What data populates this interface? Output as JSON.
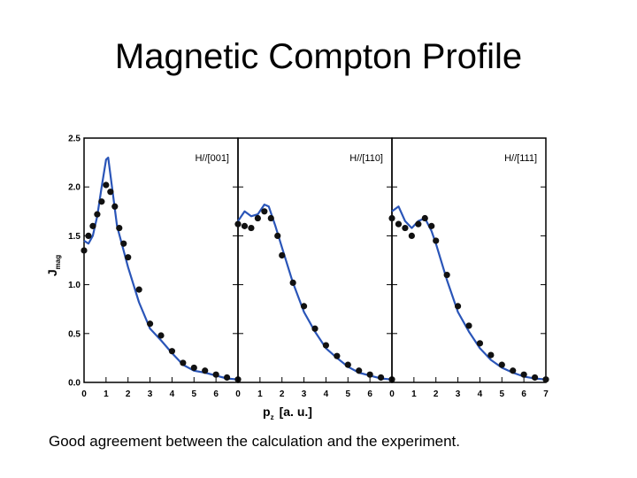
{
  "slide": {
    "title": "Magnetic Compton Profile",
    "caption": "Good agreement between the calculation and the experiment."
  },
  "colors": {
    "theory": "#2a55b8",
    "experiment": "#111111",
    "axes": "#000000"
  },
  "chart_data": {
    "type": "line",
    "xlabel_main": "p",
    "xlabel_sub": "z",
    "xlabel_unit": "[a. u.]",
    "ylabel_main": "J",
    "ylabel_sub": "mag",
    "ylim": [
      0.0,
      2.5
    ],
    "xlim": [
      0,
      7
    ],
    "yticks": [
      "0.0",
      "0.5",
      "1.0",
      "1.5",
      "2.0",
      "2.5"
    ],
    "xticks": [
      "0",
      "1",
      "2",
      "3",
      "4",
      "5",
      "6",
      "7"
    ],
    "panels": [
      {
        "label": "H//[001]",
        "series": [
          {
            "name": "calculation",
            "style": "line",
            "x": [
              0,
              0.2,
              0.4,
              0.6,
              0.8,
              1.0,
              1.1,
              1.3,
              1.5,
              1.8,
              2.0,
              2.5,
              3.0,
              3.5,
              4.0,
              4.5,
              5.0,
              5.5,
              6.0,
              6.5,
              7.0
            ],
            "y": [
              1.45,
              1.42,
              1.5,
              1.7,
              2.0,
              2.28,
              2.3,
              1.95,
              1.6,
              1.35,
              1.18,
              0.82,
              0.55,
              0.43,
              0.3,
              0.18,
              0.12,
              0.1,
              0.07,
              0.04,
              0.03
            ]
          },
          {
            "name": "experiment",
            "style": "markers",
            "x": [
              0,
              0.2,
              0.4,
              0.6,
              0.8,
              1.0,
              1.2,
              1.4,
              1.6,
              1.8,
              2.0,
              2.5,
              3.0,
              3.5,
              4.0,
              4.5,
              5.0,
              5.5,
              6.0,
              6.5,
              7.0
            ],
            "y": [
              1.35,
              1.5,
              1.6,
              1.72,
              1.85,
              2.02,
              1.95,
              1.8,
              1.58,
              1.42,
              1.28,
              0.95,
              0.6,
              0.48,
              0.32,
              0.2,
              0.15,
              0.12,
              0.08,
              0.05,
              0.03
            ]
          }
        ]
      },
      {
        "label": "H//[110]",
        "series": [
          {
            "name": "calculation",
            "style": "line",
            "x": [
              0,
              0.3,
              0.6,
              0.9,
              1.2,
              1.4,
              1.7,
              2.0,
              2.5,
              3.0,
              3.5,
              4.0,
              4.5,
              5.0,
              5.5,
              6.0,
              6.5,
              7.0
            ],
            "y": [
              1.65,
              1.75,
              1.7,
              1.72,
              1.82,
              1.8,
              1.6,
              1.38,
              1.02,
              0.72,
              0.52,
              0.35,
              0.25,
              0.16,
              0.1,
              0.07,
              0.04,
              0.03
            ]
          },
          {
            "name": "experiment",
            "style": "markers",
            "x": [
              0,
              0.3,
              0.6,
              0.9,
              1.2,
              1.5,
              1.8,
              2.0,
              2.5,
              3.0,
              3.5,
              4.0,
              4.5,
              5.0,
              5.5,
              6.0,
              6.5,
              7.0
            ],
            "y": [
              1.62,
              1.6,
              1.58,
              1.68,
              1.75,
              1.68,
              1.5,
              1.3,
              1.02,
              0.78,
              0.55,
              0.38,
              0.27,
              0.18,
              0.12,
              0.08,
              0.05,
              0.03
            ]
          }
        ]
      },
      {
        "label": "H//[111]",
        "series": [
          {
            "name": "calculation",
            "style": "line",
            "x": [
              0,
              0.3,
              0.6,
              0.9,
              1.2,
              1.5,
              1.8,
              2.0,
              2.5,
              3.0,
              3.5,
              4.0,
              4.5,
              5.0,
              5.5,
              6.0,
              6.5,
              7.0
            ],
            "y": [
              1.75,
              1.8,
              1.65,
              1.58,
              1.65,
              1.68,
              1.55,
              1.42,
              1.05,
              0.72,
              0.52,
              0.35,
              0.23,
              0.15,
              0.1,
              0.06,
              0.04,
              0.03
            ]
          },
          {
            "name": "experiment",
            "style": "markers",
            "x": [
              0,
              0.3,
              0.6,
              0.9,
              1.2,
              1.5,
              1.8,
              2.0,
              2.5,
              3.0,
              3.5,
              4.0,
              4.5,
              5.0,
              5.5,
              6.0,
              6.5,
              7.0
            ],
            "y": [
              1.68,
              1.62,
              1.58,
              1.5,
              1.62,
              1.68,
              1.6,
              1.45,
              1.1,
              0.78,
              0.58,
              0.4,
              0.28,
              0.18,
              0.12,
              0.08,
              0.05,
              0.03
            ]
          }
        ]
      }
    ]
  }
}
